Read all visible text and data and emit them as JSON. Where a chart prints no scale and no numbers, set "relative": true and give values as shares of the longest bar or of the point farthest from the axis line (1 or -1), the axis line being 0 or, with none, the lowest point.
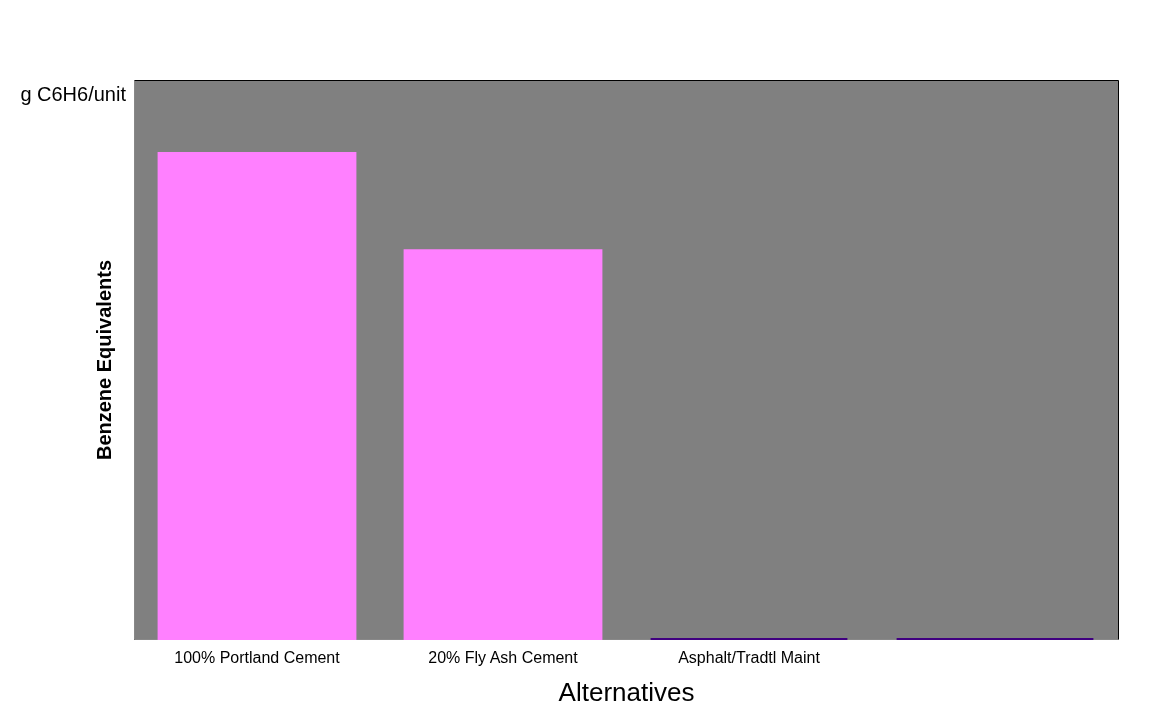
{
  "chart_data": {
    "type": "bar",
    "relative": true,
    "xlabel": "Alternatives",
    "ylabel": "Benzene Equivalents",
    "annotations": [
      "g C6H6/unit"
    ],
    "categories": [
      "100% Portland Cement",
      "20% Fly Ash Cement",
      "Asphalt/Tradtl Maint",
      null
    ],
    "values": [
      1,
      0.8,
      0,
      0
    ],
    "colors": [
      "#ff80ff",
      "#ff80ff",
      "#400080",
      "#400080"
    ]
  }
}
